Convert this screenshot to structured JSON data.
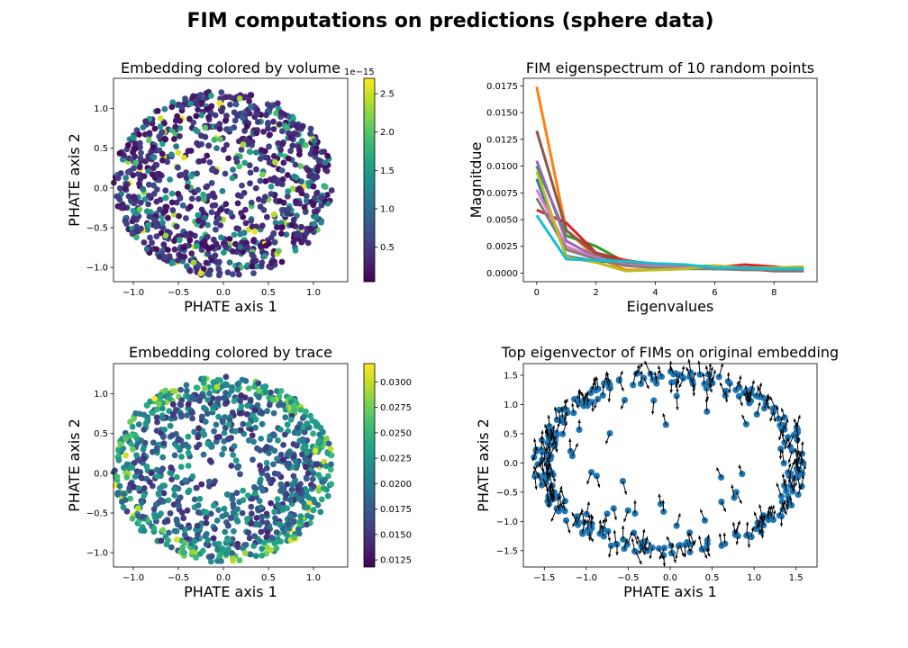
{
  "suptitle": "FIM computations on predictions (sphere data)",
  "chart_data": [
    {
      "type": "scatter",
      "title": "Embedding colored by volume",
      "xlabel": "PHATE axis 1",
      "ylabel": "PHATE axis 2",
      "xlim": [
        -1.22,
        1.38
      ],
      "ylim": [
        -1.18,
        1.38
      ],
      "xticks": [
        "-1.0",
        "-0.5",
        "0.0",
        "0.5",
        "1.0"
      ],
      "yticks": [
        "-1.0",
        "-0.5",
        "0.0",
        "0.5",
        "1.0"
      ],
      "colormap": "viridis",
      "colorbar": {
        "range": [
          0.05,
          2.7
        ],
        "ticks": [
          "0.5",
          "1.0",
          "1.5",
          "2.0",
          "2.5"
        ],
        "offset_text": "1e−15"
      },
      "points_summary": {
        "shape": "disk-shaped point cloud with sparse interior",
        "center": [
          0.0,
          0.05
        ],
        "radius_x": 1.22,
        "radius_y": 1.17,
        "approx_count": 1000,
        "value_distribution": "mostly low (0.1-0.6e-15), some mid (1.0-1.5e-15), few high (2.0-2.7e-15)"
      }
    },
    {
      "type": "line",
      "title": "FIM eigenspectrum of 10 random points",
      "xlabel": "Eigenvalues",
      "ylabel": "Magnitdue",
      "xlim": [
        -0.45,
        9.45
      ],
      "ylim": [
        -0.0008,
        0.0182
      ],
      "xticks": [
        "0",
        "2",
        "4",
        "6",
        "8"
      ],
      "yticks": [
        "0.0000",
        "0.0025",
        "0.0050",
        "0.0075",
        "0.0100",
        "0.0125",
        "0.0150",
        "0.0175"
      ],
      "x": [
        0,
        1,
        2,
        3,
        4,
        5,
        6,
        7,
        8,
        9
      ],
      "series": [
        {
          "color": "#1f77b4",
          "values": [
            0.0088,
            0.0016,
            0.0011,
            0.001,
            0.0008,
            0.0006,
            0.0004,
            0.0004,
            0.0003,
            0.0003
          ]
        },
        {
          "color": "#ff7f0e",
          "values": [
            0.0174,
            0.004,
            0.0015,
            0.0003,
            0.0003,
            0.0004,
            0.0006,
            0.0005,
            0.0004,
            0.0005
          ]
        },
        {
          "color": "#2ca02c",
          "values": [
            0.01,
            0.0035,
            0.0025,
            0.001,
            0.0007,
            0.0006,
            0.0007,
            0.0005,
            0.0005,
            0.0004
          ]
        },
        {
          "color": "#d62728",
          "values": [
            0.0059,
            0.0047,
            0.0019,
            0.0012,
            0.0008,
            0.0006,
            0.0005,
            0.0008,
            0.0006,
            0.0003
          ]
        },
        {
          "color": "#9467bd",
          "values": [
            0.0105,
            0.003,
            0.0015,
            0.0008,
            0.0007,
            0.0005,
            0.0004,
            0.0004,
            0.0003,
            0.0003
          ]
        },
        {
          "color": "#8c564b",
          "values": [
            0.0133,
            0.004,
            0.0018,
            0.0009,
            0.0006,
            0.0005,
            0.0004,
            0.0004,
            0.0002,
            0.0002
          ]
        },
        {
          "color": "#e377c2",
          "values": [
            0.0078,
            0.0025,
            0.0014,
            0.0008,
            0.0006,
            0.0005,
            0.0004,
            0.0004,
            0.0003,
            0.0003
          ]
        },
        {
          "color": "#7f7f7f",
          "values": [
            0.007,
            0.0022,
            0.0013,
            0.0007,
            0.0005,
            0.0004,
            0.0004,
            0.0003,
            0.0003,
            0.0003
          ]
        },
        {
          "color": "#bcbd22",
          "values": [
            0.0095,
            0.0015,
            0.001,
            0.0002,
            0.0003,
            0.0004,
            0.0007,
            0.0005,
            0.0005,
            0.0006
          ]
        },
        {
          "color": "#17becf",
          "values": [
            0.0054,
            0.0013,
            0.0012,
            0.0011,
            0.0009,
            0.0008,
            0.0005,
            0.0005,
            0.0004,
            0.0004
          ]
        }
      ]
    },
    {
      "type": "scatter",
      "title": "Embedding colored by trace",
      "xlabel": "PHATE axis 1",
      "ylabel": "PHATE axis 2",
      "xlim": [
        -1.22,
        1.38
      ],
      "ylim": [
        -1.18,
        1.38
      ],
      "xticks": [
        "-1.0",
        "-0.5",
        "0.0",
        "0.5",
        "1.0"
      ],
      "yticks": [
        "-1.0",
        "-0.5",
        "0.0",
        "0.5",
        "1.0"
      ],
      "colormap": "viridis",
      "colorbar": {
        "range": [
          0.0118,
          0.0318
        ],
        "ticks": [
          "0.0125",
          "0.0150",
          "0.0175",
          "0.0200",
          "0.0225",
          "0.0250",
          "0.0275",
          "0.0300"
        ]
      },
      "points_summary": {
        "shape": "disk-shaped point cloud with sparse interior",
        "center": [
          0.0,
          0.05
        ],
        "radius_x": 1.22,
        "radius_y": 1.17,
        "approx_count": 1000,
        "value_distribution": "mixed, mostly 0.015-0.024, higher (0.027-0.031) concentrated near the rim"
      }
    },
    {
      "type": "scatter",
      "title": "Top eigenvector of FIMs on original embedding",
      "xlabel": "PHATE axis 1",
      "ylabel": "PHATE axis 2",
      "xlim": [
        -1.75,
        1.75
      ],
      "ylim": [
        -1.78,
        1.7
      ],
      "xticks": [
        "-1.5",
        "-1.0",
        "-0.5",
        "0.0",
        "0.5",
        "1.0",
        "1.5"
      ],
      "yticks": [
        "-1.5",
        "-1.0",
        "-0.5",
        "0.0",
        "0.5",
        "1.0",
        "1.5"
      ],
      "point_color": "#1f77b4",
      "arrows": "short black arrows, one per point, mostly vertical",
      "points_summary": {
        "shape": "elliptical ring with a few interior points",
        "center": [
          0.0,
          0.0
        ],
        "radius_x": 1.6,
        "radius_y": 1.55,
        "approx_count": 300
      }
    }
  ]
}
